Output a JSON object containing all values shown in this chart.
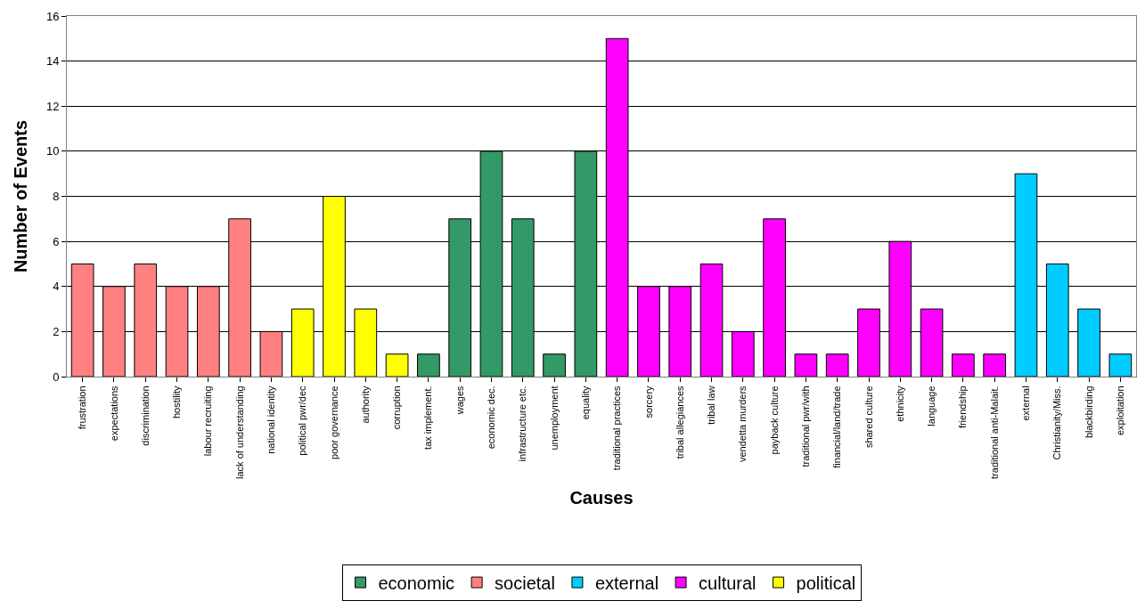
{
  "chart_data": {
    "type": "bar",
    "xlabel": "Causes",
    "ylabel": "Number of Events",
    "categories": [
      "frustration",
      "expectations",
      "discrimination",
      "hostility",
      "labour recruiting",
      "lack of understanding",
      "national identity",
      "political pwr/dec",
      "poor governance",
      "authority",
      "corruption",
      "tax implement.",
      "wages",
      "economic dec.",
      "infrastructure etc.",
      "unemployment",
      "equality",
      "traditional practices",
      "sorcery",
      "tribal allegiances",
      "tribal law",
      "vendetta murders",
      "payback culture",
      "traditional pwr/with",
      "financial/land/trade",
      "shared culture",
      "ethnicity",
      "language",
      "friendship",
      "traditional anti-Malait.",
      "external",
      "Christianity/Miss.",
      "blackbirding",
      "exploitation"
    ],
    "series": [
      {
        "name": "economic",
        "color": "#339966",
        "values": [
          null,
          null,
          null,
          null,
          null,
          null,
          null,
          null,
          null,
          null,
          null,
          1,
          7,
          10,
          7,
          1,
          10,
          null,
          null,
          null,
          null,
          null,
          null,
          null,
          null,
          null,
          null,
          null,
          null,
          null,
          null,
          null,
          null,
          null
        ]
      },
      {
        "name": "societal",
        "color": "#ff8080",
        "values": [
          5,
          4,
          5,
          4,
          4,
          7,
          2,
          null,
          null,
          null,
          null,
          null,
          null,
          null,
          null,
          null,
          null,
          null,
          null,
          null,
          null,
          null,
          null,
          null,
          null,
          null,
          null,
          null,
          null,
          null,
          null,
          null,
          null,
          null
        ]
      },
      {
        "name": "external",
        "color": "#00ccff",
        "values": [
          null,
          null,
          null,
          null,
          null,
          null,
          null,
          null,
          null,
          null,
          null,
          null,
          null,
          null,
          null,
          null,
          null,
          null,
          null,
          null,
          null,
          null,
          null,
          null,
          null,
          null,
          null,
          null,
          null,
          null,
          9,
          5,
          3,
          1
        ]
      },
      {
        "name": "cultural",
        "color": "#ff00ff",
        "values": [
          null,
          null,
          null,
          null,
          null,
          null,
          null,
          null,
          null,
          null,
          null,
          null,
          null,
          null,
          null,
          null,
          null,
          15,
          4,
          4,
          5,
          2,
          7,
          1,
          1,
          3,
          6,
          3,
          1,
          1,
          null,
          null,
          null,
          null
        ]
      },
      {
        "name": "political",
        "color": "#ffff00",
        "values": [
          null,
          null,
          null,
          null,
          null,
          null,
          null,
          3,
          8,
          3,
          1,
          null,
          null,
          null,
          null,
          null,
          null,
          null,
          null,
          null,
          null,
          null,
          null,
          null,
          null,
          null,
          null,
          null,
          null,
          null,
          null,
          null,
          null,
          null
        ]
      }
    ],
    "ylim": [
      0,
      16
    ],
    "yticks": [
      0,
      2,
      4,
      6,
      8,
      10,
      12,
      14,
      16
    ],
    "grid": "y",
    "legend": "bottom"
  }
}
